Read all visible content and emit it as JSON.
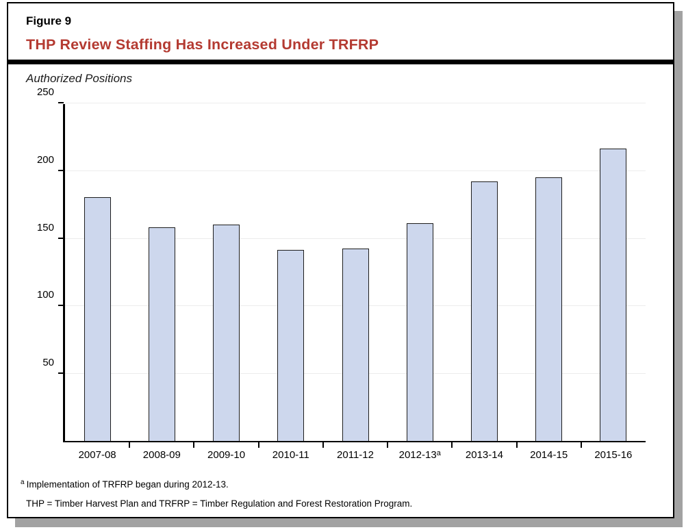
{
  "header": {
    "figure_number": "Figure 9",
    "title": "THP Review Staffing Has Increased Under TRFRP",
    "title_color": "#b43a31"
  },
  "chart_data": {
    "type": "bar",
    "title": "THP Review Staffing Has Increased Under TRFRP",
    "unit_label": "Authorized Positions",
    "categories": [
      "2007-08",
      "2008-09",
      "2009-10",
      "2010-11",
      "2011-12",
      "2012-13",
      "2013-14",
      "2014-15",
      "2015-16"
    ],
    "values": [
      180,
      158,
      160,
      141,
      142,
      161,
      192,
      195,
      216
    ],
    "category_superscripts": {
      "5": "a"
    },
    "xlabel": "",
    "ylabel": "Authorized Positions",
    "ylim": [
      0,
      250
    ],
    "yticks": [
      50,
      100,
      150,
      200,
      250
    ],
    "grid": "horizontal",
    "legend": "none",
    "bar_fill": "#cdd7ed",
    "bar_border": "#1c1c1c",
    "gridline_color": "#ececec"
  },
  "footnotes": [
    {
      "marker": "a",
      "text": "Implementation of TRFRP began during 2012-13."
    },
    {
      "marker": "",
      "text": "THP = Timber Harvest Plan and TRFRP = Timber Regulation and Forest Restoration Program."
    }
  ]
}
